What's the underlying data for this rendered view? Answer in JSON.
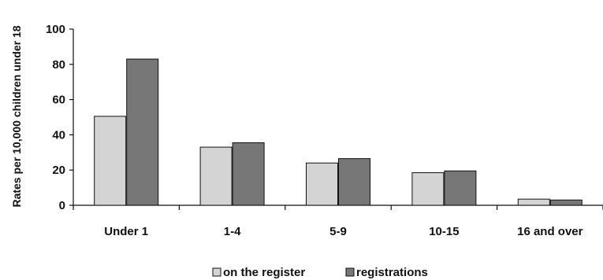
{
  "chart_data": {
    "type": "bar",
    "title": "",
    "xlabel": "",
    "ylabel": "Rates per 10,000 children under 18",
    "ylim": [
      0,
      100
    ],
    "yticks": [
      0,
      20,
      40,
      60,
      80,
      100
    ],
    "grid": false,
    "legend_position": "bottom",
    "categories": [
      "Under 1",
      "1-4",
      "5-9",
      "10-15",
      "16 and over"
    ],
    "series": [
      {
        "name": "on the register",
        "color": "#d4d4d4",
        "values": [
          50.5,
          33,
          24,
          18.5,
          3.5
        ]
      },
      {
        "name": "registrations",
        "color": "#777777",
        "values": [
          83,
          35.5,
          26.5,
          19.5,
          3
        ]
      }
    ]
  }
}
